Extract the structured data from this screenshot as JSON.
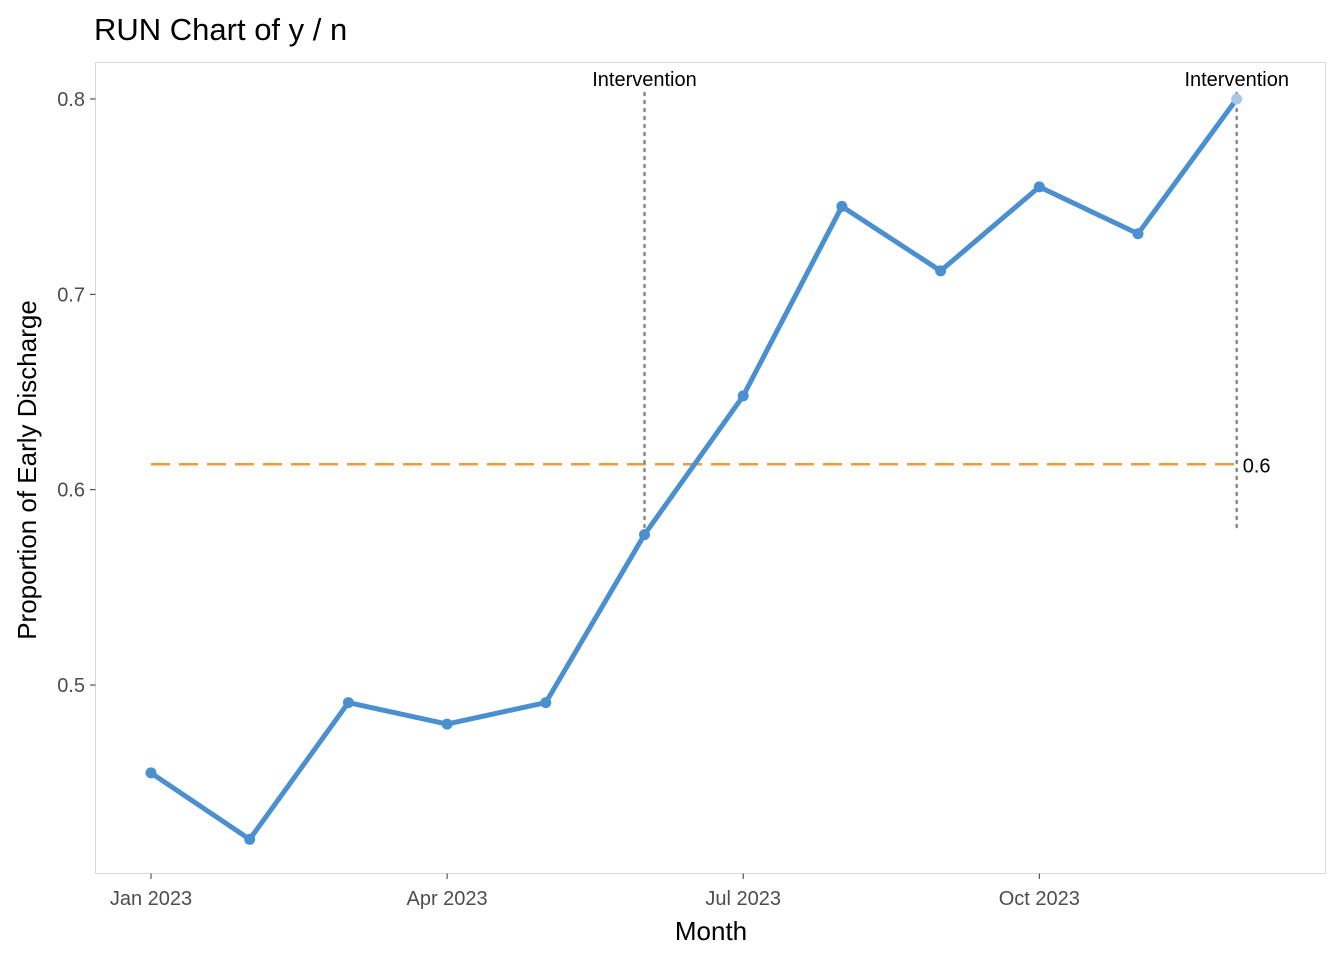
{
  "chart_data": {
    "type": "line",
    "title": "RUN Chart of y / n",
    "xlabel": "Month",
    "ylabel": "Proportion of Early Discharge",
    "x": [
      "2023-01",
      "2023-02",
      "2023-03",
      "2023-04",
      "2023-05",
      "2023-06",
      "2023-07",
      "2023-08",
      "2023-09",
      "2023-10",
      "2023-11",
      "2023-12"
    ],
    "x_ticks": [
      {
        "x": "2023-01",
        "label": "Jan 2023"
      },
      {
        "x": "2023-04",
        "label": "Apr 2023"
      },
      {
        "x": "2023-07",
        "label": "Jul 2023"
      },
      {
        "x": "2023-10",
        "label": "Oct 2023"
      }
    ],
    "y_ticks": [
      {
        "value": 0.5,
        "label": "0.5"
      },
      {
        "value": 0.6,
        "label": "0.6"
      },
      {
        "value": 0.7,
        "label": "0.7"
      },
      {
        "value": 0.8,
        "label": "0.8"
      }
    ],
    "ylim": [
      0.403,
      0.82
    ],
    "series": [
      {
        "values": [
          0.455,
          0.421,
          0.491,
          0.48,
          0.491,
          0.577,
          0.648,
          0.745,
          0.712,
          0.755,
          0.731,
          0.8
        ],
        "color": "#4a90d0"
      }
    ],
    "median": {
      "value": 0.613,
      "label": "0.6",
      "color": "#f59a3a",
      "style": "dashed"
    },
    "interventions": [
      {
        "x": "2023-06",
        "label": "Intervention"
      },
      {
        "x": "2023-12",
        "label": "Intervention"
      }
    ],
    "last_point_color": "#a9c8e8",
    "grid": false,
    "legend": "none"
  }
}
